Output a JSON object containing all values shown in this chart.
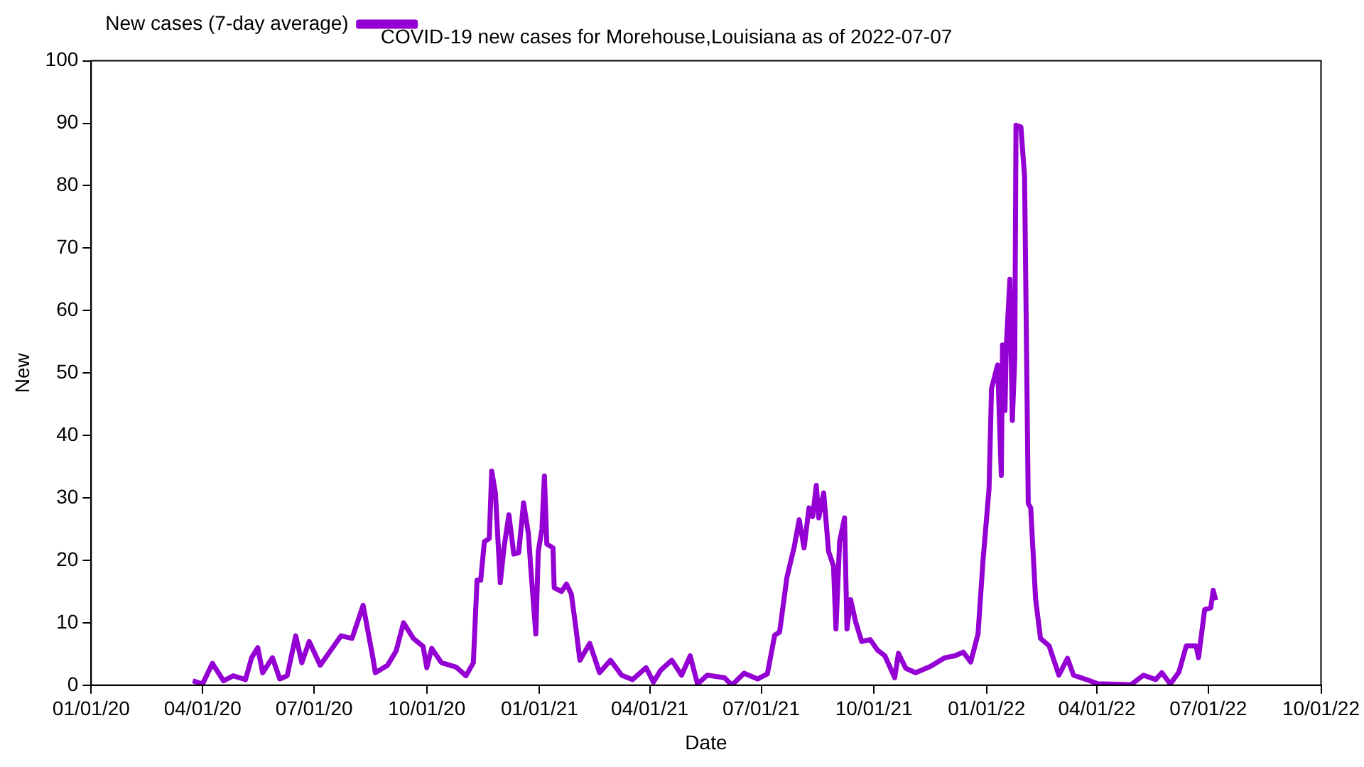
{
  "chart_data": {
    "type": "line",
    "title": "COVID-19 new cases for Morehouse,Louisiana as of 2022-07-07",
    "xlabel": "Date",
    "ylabel": "New",
    "x": [
      "2020-03-24",
      "2020-04-01",
      "2020-04-09",
      "2020-04-18",
      "2020-04-26",
      "2020-05-06",
      "2020-05-11",
      "2020-05-16",
      "2020-05-20",
      "2020-05-28",
      "2020-06-03",
      "2020-06-09",
      "2020-06-16",
      "2020-06-21",
      "2020-06-27",
      "2020-07-06",
      "2020-07-23",
      "2020-08-01",
      "2020-08-10",
      "2020-08-18",
      "2020-08-20",
      "2020-08-30",
      "2020-09-06",
      "2020-09-12",
      "2020-09-20",
      "2020-09-28",
      "2020-10-01",
      "2020-10-05",
      "2020-10-13",
      "2020-10-25",
      "2020-11-02",
      "2020-11-08",
      "2020-11-11",
      "2020-11-14",
      "2020-11-17",
      "2020-11-21",
      "2020-11-23",
      "2020-11-26",
      "2020-11-30",
      "2020-12-03",
      "2020-12-07",
      "2020-12-11",
      "2020-12-15",
      "2020-12-19",
      "2020-12-23",
      "2020-12-25",
      "2020-12-29",
      "2020-12-31",
      "2021-01-03",
      "2021-01-05",
      "2021-01-07",
      "2021-01-12",
      "2021-01-13",
      "2021-01-19",
      "2021-01-23",
      "2021-01-27",
      "2021-01-30",
      "2021-02-03",
      "2021-02-11",
      "2021-02-19",
      "2021-02-28",
      "2021-03-09",
      "2021-03-18",
      "2021-03-29",
      "2021-04-04",
      "2021-04-10",
      "2021-04-19",
      "2021-04-27",
      "2021-05-04",
      "2021-05-10",
      "2021-05-18",
      "2021-06-01",
      "2021-06-07",
      "2021-06-17",
      "2021-06-28",
      "2021-07-06",
      "2021-07-12",
      "2021-07-16",
      "2021-07-22",
      "2021-07-28",
      "2021-08-01",
      "2021-08-05",
      "2021-08-09",
      "2021-08-12",
      "2021-08-15",
      "2021-08-17",
      "2021-08-21",
      "2021-08-25",
      "2021-08-29",
      "2021-08-31",
      "2021-09-03",
      "2021-09-07",
      "2021-09-09",
      "2021-09-12",
      "2021-09-16",
      "2021-09-21",
      "2021-09-28",
      "2021-10-04",
      "2021-10-10",
      "2021-10-18",
      "2021-10-21",
      "2021-10-27",
      "2021-11-04",
      "2021-11-16",
      "2021-11-28",
      "2021-12-06",
      "2021-12-13",
      "2021-12-19",
      "2021-12-25",
      "2021-12-29",
      "2022-01-03",
      "2022-01-05",
      "2022-01-10",
      "2022-01-13",
      "2022-01-14",
      "2022-01-16",
      "2022-01-17",
      "2022-01-20",
      "2022-01-22",
      "2022-01-24",
      "2022-01-25",
      "2022-01-29",
      "2022-02-01",
      "2022-02-04",
      "2022-02-06",
      "2022-02-10",
      "2022-02-14",
      "2022-02-21",
      "2022-03-01",
      "2022-03-08",
      "2022-03-13",
      "2022-03-25",
      "2022-04-02",
      "2022-04-06",
      "2022-04-29",
      "2022-05-09",
      "2022-05-19",
      "2022-05-24",
      "2022-05-31",
      "2022-06-07",
      "2022-06-13",
      "2022-06-21",
      "2022-06-23",
      "2022-06-28",
      "2022-07-03",
      "2022-07-05",
      "2022-07-07"
    ],
    "series": [
      {
        "name": "New cases (7-day average)",
        "color": "#9400d3",
        "values": [
          0.7,
          0.2,
          3.5,
          0.7,
          1.5,
          0.9,
          4.4,
          6,
          2,
          4.4,
          1,
          1.5,
          7.9,
          3.6,
          7,
          3.2,
          7.9,
          7.5,
          12.8,
          4.4,
          2,
          3.2,
          5.5,
          10,
          7.5,
          6.2,
          2.8,
          5.9,
          3.6,
          2.9,
          1.5,
          3.6,
          16.8,
          16.8,
          23,
          23.5,
          34.3,
          30.8,
          16.4,
          22,
          27.3,
          21,
          21.2,
          29.2,
          24.2,
          18.4,
          8.2,
          21.4,
          25,
          33.5,
          22.6,
          22,
          15.6,
          15,
          16.2,
          14.6,
          10.2,
          4,
          6.7,
          2,
          4,
          1.6,
          0.9,
          2.8,
          0.5,
          2.4,
          4,
          1.6,
          4.7,
          0.2,
          1.6,
          1.2,
          0,
          1.9,
          1,
          1.8,
          8,
          8.5,
          17.3,
          22.2,
          26.5,
          22,
          28.4,
          27,
          32,
          26.8,
          30.8,
          21.4,
          19.1,
          9,
          23,
          26.8,
          9,
          13.7,
          10.2,
          7,
          7.3,
          5.6,
          4.7,
          1.2,
          5.1,
          2.7,
          2,
          3,
          4.4,
          4.7,
          5.3,
          3.7,
          8.2,
          19.8,
          31.5,
          47.5,
          51.3,
          33.6,
          54.5,
          44,
          54,
          65,
          42.4,
          52.4,
          89.7,
          89.4,
          81.4,
          29.1,
          28.4,
          13.8,
          7.5,
          6.3,
          1.6,
          4.3,
          1.6,
          0.8,
          0.2,
          0.2,
          0.1,
          1.6,
          0.9,
          2,
          0.2,
          2.1,
          6.3,
          6.3,
          4.4,
          12.1,
          12.4,
          15.2,
          13.6
        ]
      }
    ],
    "xlim": [
      "2020-01-01",
      "2022-10-01"
    ],
    "xticks": [
      {
        "value": "2020-01-01",
        "label": "01/01/20"
      },
      {
        "value": "2020-04-01",
        "label": "04/01/20"
      },
      {
        "value": "2020-07-01",
        "label": "07/01/20"
      },
      {
        "value": "2020-10-01",
        "label": "10/01/20"
      },
      {
        "value": "2021-01-01",
        "label": "01/01/21"
      },
      {
        "value": "2021-04-01",
        "label": "04/01/21"
      },
      {
        "value": "2021-07-01",
        "label": "07/01/21"
      },
      {
        "value": "2021-10-01",
        "label": "10/01/21"
      },
      {
        "value": "2022-01-01",
        "label": "01/01/22"
      },
      {
        "value": "2022-04-01",
        "label": "04/01/22"
      },
      {
        "value": "2022-07-01",
        "label": "07/01/22"
      },
      {
        "value": "2022-10-01",
        "label": "10/01/22"
      }
    ],
    "ylim": [
      0,
      100
    ],
    "yticks": [
      0,
      10,
      20,
      30,
      40,
      50,
      60,
      70,
      80,
      90,
      100
    ],
    "legend": "top left",
    "grid": false,
    "marker": "none",
    "line_style": "solid"
  }
}
